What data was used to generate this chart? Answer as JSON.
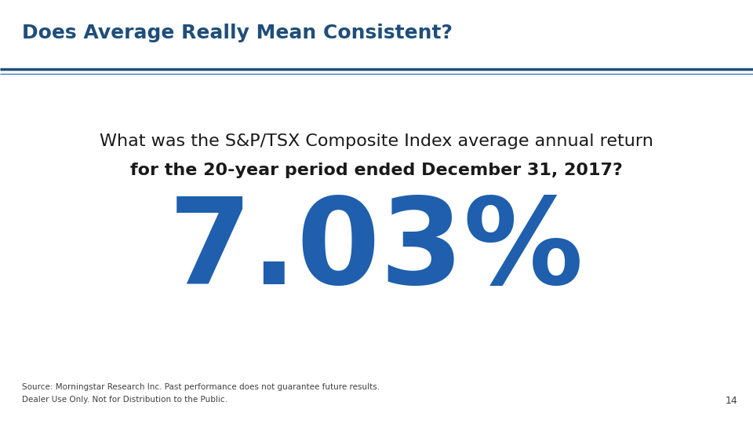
{
  "title": "Does Average Really Mean Consistent?",
  "title_color": "#1F4E79",
  "title_fontsize": 18,
  "question_line1": "What was the S&P/TSX Composite Index average annual return",
  "question_line2": "for the 20-year period ended December 31, 2017?",
  "question_color": "#1a1a1a",
  "question_fontsize": 16,
  "big_number": "7.03%",
  "big_number_color": "#1F5FAD",
  "big_number_fontsize": 110,
  "source_line1": "Source: Morningstar Research Inc. Past performance does not guarantee future results.",
  "source_line2": "Dealer Use Only. Not for Distribution to the Public.",
  "source_color": "#404040",
  "source_fontsize": 7.5,
  "page_number": "14",
  "page_number_color": "#404040",
  "page_number_fontsize": 9,
  "bg_color": "#FFFFFF",
  "header_line_color1": "#1F4E79",
  "header_line_color2": "#4472C4"
}
